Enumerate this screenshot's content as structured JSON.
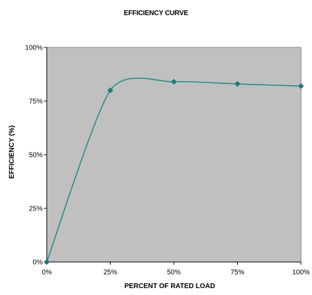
{
  "chart_data": {
    "type": "line",
    "title": "EFFICIENCY CURVE",
    "xlabel": "PERCENT OF RATED LOAD",
    "ylabel": "EFFICIENCY (%)",
    "x": [
      0,
      25,
      50,
      75,
      100
    ],
    "xticks": [
      "0%",
      "25%",
      "50%",
      "75%",
      "100%"
    ],
    "yticks": [
      "0%",
      "25%",
      "50%",
      "75%",
      "100%"
    ],
    "xlim": [
      0,
      100
    ],
    "ylim": [
      0,
      100
    ],
    "series": [
      {
        "values": [
          0,
          80,
          84,
          83,
          82
        ]
      }
    ],
    "grid": false,
    "legend": "none",
    "colors": {
      "plot_background": "#c0c0c0",
      "line": "#2a8c8c",
      "marker": "#1f7a7a"
    }
  }
}
